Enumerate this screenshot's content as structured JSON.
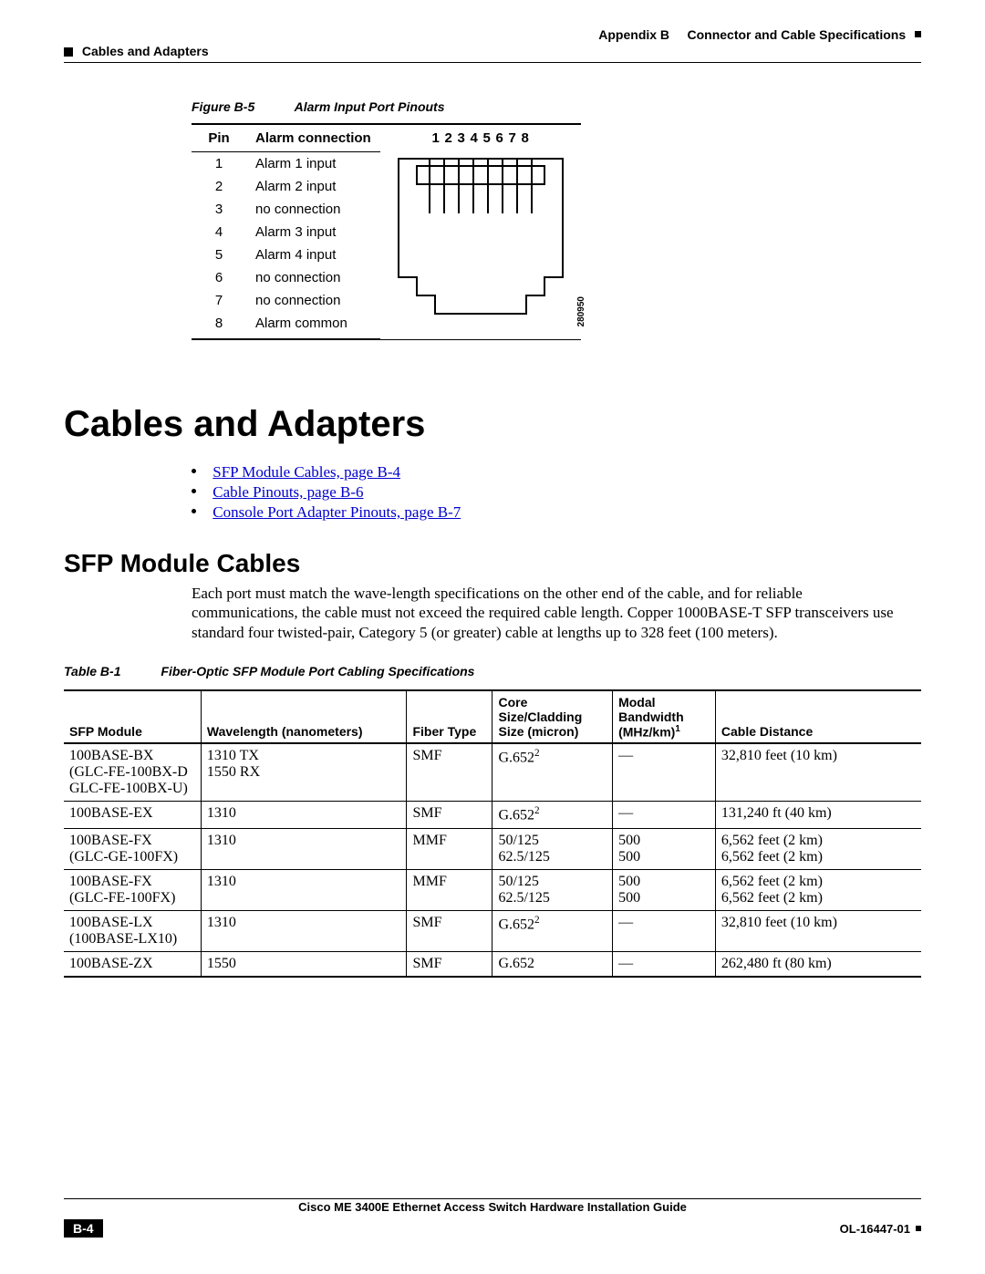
{
  "header": {
    "appendix": "Appendix B",
    "appendix_title": "Connector and Cable Specifications",
    "section": "Cables and Adapters"
  },
  "figure": {
    "label": "Figure B-5",
    "title": "Alarm Input Port Pinouts",
    "pin_header": "Pin",
    "conn_header": "Alarm connection",
    "pins": [
      {
        "n": "1",
        "c": "Alarm 1 input"
      },
      {
        "n": "2",
        "c": "Alarm 2 input"
      },
      {
        "n": "3",
        "c": "no connection"
      },
      {
        "n": "4",
        "c": "Alarm 3 input"
      },
      {
        "n": "5",
        "c": "Alarm 4 input"
      },
      {
        "n": "6",
        "c": "no connection"
      },
      {
        "n": "7",
        "c": "no connection"
      },
      {
        "n": "8",
        "c": "Alarm common"
      }
    ],
    "rj_numbers": [
      "1",
      "2",
      "3",
      "4",
      "5",
      "6",
      "7",
      "8"
    ],
    "diagram_id": "280950"
  },
  "h1": "Cables and Adapters",
  "links": [
    "SFP Module Cables, page B-4",
    "Cable Pinouts, page B-6",
    "Console Port Adapter Pinouts, page B-7"
  ],
  "h2": "SFP Module Cables",
  "paragraph": "Each port must match the wave-length specifications on the other end of the cable, and for reliable communications, the cable must not exceed the required cable length. Copper 1000BASE-T SFP transceivers use standard four twisted-pair, Category 5 (or greater) cable at lengths up to 328 feet (100 meters).",
  "table": {
    "label": "Table B-1",
    "title": "Fiber-Optic SFP Module Port Cabling Specifications",
    "columns": [
      "SFP Module",
      "Wavelength (nanometers)",
      "Fiber Type",
      "Core Size/Cladding Size (micron)",
      "Modal Bandwidth (MHz/km)",
      "Cable Distance"
    ],
    "col_widths": [
      "16%",
      "24%",
      "10%",
      "14%",
      "12%",
      "24%"
    ],
    "rows": [
      {
        "module": [
          "100BASE-BX",
          "(GLC-FE-100BX-D",
          "GLC-FE-100BX-U)"
        ],
        "wavelength": [
          "1310 TX",
          "1550 RX"
        ],
        "fiber": "SMF",
        "core": "G.652",
        "core_sup": "2",
        "modal": "—",
        "dist": [
          "32,810 feet (10 km)"
        ]
      },
      {
        "module": [
          "100BASE-EX"
        ],
        "wavelength": [
          "1310"
        ],
        "fiber": "SMF",
        "core": "G.652",
        "core_sup": "2",
        "modal": "—",
        "dist": [
          "131,240 ft (40 km)"
        ]
      },
      {
        "module": [
          "100BASE-FX",
          "(GLC-GE-100FX)"
        ],
        "wavelength": [
          "1310"
        ],
        "fiber": "MMF",
        "core_lines": [
          "50/125",
          "62.5/125"
        ],
        "modal_lines": [
          "500",
          "500"
        ],
        "dist": [
          "6,562 feet (2 km)",
          "6,562 feet (2 km)"
        ]
      },
      {
        "module": [
          "100BASE-FX",
          "(GLC-FE-100FX)"
        ],
        "wavelength": [
          "1310"
        ],
        "fiber": "MMF",
        "core_lines": [
          "50/125",
          "62.5/125"
        ],
        "modal_lines": [
          "500",
          "500"
        ],
        "dist": [
          "6,562 feet (2 km)",
          "6,562 feet (2 km)"
        ]
      },
      {
        "module": [
          "100BASE-LX",
          "(100BASE-LX10)"
        ],
        "wavelength": [
          "1310"
        ],
        "fiber": "SMF",
        "core": "G.652",
        "core_sup": "2",
        "modal": "—",
        "dist": [
          "32,810 feet (10 km)"
        ]
      },
      {
        "module": [
          "100BASE-ZX"
        ],
        "wavelength": [
          "1550"
        ],
        "fiber": "SMF",
        "core": "G.652",
        "modal": "—",
        "dist": [
          "262,480 ft (80 km)"
        ]
      }
    ]
  },
  "footer": {
    "doc_title": "Cisco ME 3400E Ethernet Access Switch Hardware Installation Guide",
    "page_num": "B-4",
    "doc_num": "OL-16447-01"
  },
  "colors": {
    "link": "#0000cc",
    "text": "#000000",
    "background": "#ffffff"
  }
}
